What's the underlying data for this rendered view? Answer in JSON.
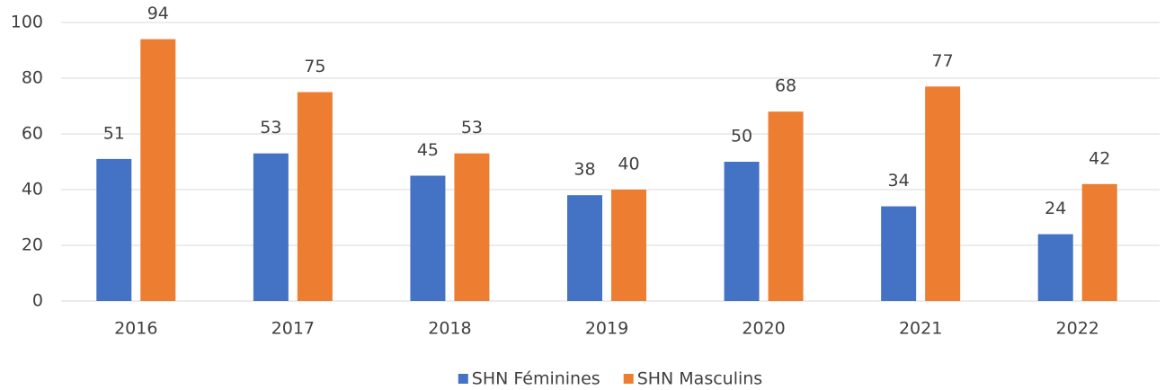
{
  "chart_data": {
    "type": "bar",
    "categories": [
      "2016",
      "2017",
      "2018",
      "2019",
      "2020",
      "2021",
      "2022"
    ],
    "series": [
      {
        "name": "SHN Féminines",
        "color": "#4472c4",
        "values": [
          51,
          53,
          45,
          38,
          50,
          34,
          24
        ]
      },
      {
        "name": "SHN Masculins",
        "color": "#ed7d31",
        "values": [
          94,
          75,
          53,
          40,
          68,
          77,
          42
        ]
      }
    ],
    "ylim": [
      0,
      100
    ],
    "yticks": [
      0,
      20,
      40,
      60,
      80,
      100
    ],
    "grid": true,
    "legend": "bottom"
  }
}
